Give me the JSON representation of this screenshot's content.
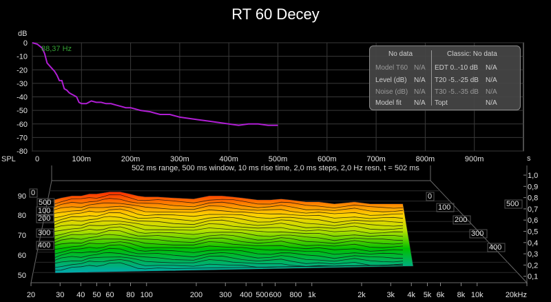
{
  "title": "RT 60 Decey",
  "top_chart": {
    "ylabel": "dB",
    "peak_label": "88,37 Hz",
    "y_ticks": [
      "0",
      "-10",
      "-20",
      "-30",
      "-40",
      "-50",
      "-60",
      "-70",
      "-80"
    ],
    "x_ticks": [
      "0",
      "100m",
      "200m",
      "300m",
      "400m",
      "500m",
      "600m",
      "700m",
      "800m",
      "900m"
    ]
  },
  "info_box": {
    "left_header": "No data",
    "right_header": "Classic: No data",
    "rows": [
      {
        "label": "Model T60",
        "value": "N/A",
        "c_label": "EDT  0..-10 dB",
        "c_value": "N/A"
      },
      {
        "label": "Level (dB)",
        "value": "N/A",
        "c_label": "T20 -5..-25 dB",
        "c_value": "N/A"
      },
      {
        "label": "Noise (dB)",
        "value": "N/A",
        "c_label": "T30 -5..-35 dB",
        "c_value": "N/A"
      },
      {
        "label": "Model fit",
        "value": "N/A",
        "c_label": "Topt",
        "c_value": "N/A"
      }
    ]
  },
  "waterfall": {
    "subtitle": "502 ms range, 500 ms window, 10 ms rise time, 2,0 ms steps,  2,0 Hz resn, t = 502 ms",
    "spl_label": "SPL",
    "s_label": "s",
    "spl_ticks": [
      "90",
      "80",
      "70",
      "60",
      "50"
    ],
    "s_ticks": [
      "1,0",
      "0,9",
      "0,8",
      "0,7",
      "0,6",
      "0,5",
      "0,4",
      "0,3",
      "0,2",
      "0,1"
    ],
    "time_left_ticks": [
      "0",
      "500",
      "100",
      "200",
      "300",
      "400"
    ],
    "time_right_ticks": [
      "0",
      "100",
      "200",
      "300",
      "400",
      "500"
    ],
    "freq_ticks": [
      "20",
      "30",
      "40",
      "50",
      "60",
      "80",
      "100",
      "200",
      "300",
      "400",
      "500",
      "600",
      "800",
      "1k",
      "2k",
      "3k",
      "4k",
      "5k",
      "6k",
      "8k",
      "10k",
      "20kHz"
    ]
  },
  "chart_data": [
    {
      "type": "line",
      "title": "RT 60 Decey",
      "xlabel": "",
      "ylabel": "dB",
      "xlim": [
        0,
        1.0
      ],
      "ylim": [
        -80,
        0
      ],
      "grid": true,
      "series": [
        {
          "name": "88,37 Hz",
          "color": "#b01ed4",
          "x": [
            0.0,
            0.01,
            0.02,
            0.025,
            0.03,
            0.035,
            0.04,
            0.045,
            0.05,
            0.055,
            0.06,
            0.065,
            0.07,
            0.075,
            0.08,
            0.085,
            0.09,
            0.095,
            0.1,
            0.11,
            0.12,
            0.13,
            0.14,
            0.15,
            0.16,
            0.17,
            0.18,
            0.19,
            0.2,
            0.22,
            0.24,
            0.25,
            0.26,
            0.28,
            0.3,
            0.32,
            0.34,
            0.36,
            0.38,
            0.4,
            0.42,
            0.44,
            0.46,
            0.48,
            0.5
          ],
          "values": [
            0,
            -1,
            -4,
            -8,
            -15,
            -17,
            -19,
            -21,
            -24,
            -28,
            -28,
            -34,
            -35,
            -37,
            -38,
            -39,
            -40,
            -44,
            -45,
            -45,
            -43,
            -44,
            -44,
            -45,
            -45,
            -46,
            -47,
            -48,
            -48,
            -50,
            -51,
            -52,
            -53,
            -53,
            -55,
            -56,
            -57,
            -58,
            -59,
            -60,
            -61,
            -60,
            -60,
            -61,
            -61
          ]
        }
      ]
    },
    {
      "type": "area",
      "title": "502 ms range, 500 ms window, 10 ms rise time, 2,0 ms steps,  2,0 Hz resn, t = 502 ms",
      "xlabel": "",
      "ylabel": "SPL",
      "xscale": "log",
      "xlim": [
        20,
        20000
      ],
      "ylim": [
        45,
        95
      ],
      "slices_time_range_ms": [
        0,
        500
      ],
      "first_slice": {
        "freq_hz": [
          27,
          30,
          35,
          40,
          45,
          50,
          55,
          60,
          70,
          80,
          90,
          100,
          120,
          150,
          200,
          250,
          300,
          350,
          400,
          500,
          600,
          700,
          800,
          1000,
          1200,
          1500,
          2000,
          2500,
          3000,
          3500,
          4000
        ],
        "spl_db": [
          88,
          89,
          90,
          90,
          91,
          91,
          91.5,
          92,
          92,
          91,
          90,
          89.5,
          89.5,
          89,
          88.5,
          90,
          90,
          89.5,
          89,
          88,
          88,
          88.5,
          88,
          87,
          87,
          86,
          87,
          86,
          86,
          86,
          86
        ]
      },
      "last_slice_floor_db": 54
    }
  ]
}
